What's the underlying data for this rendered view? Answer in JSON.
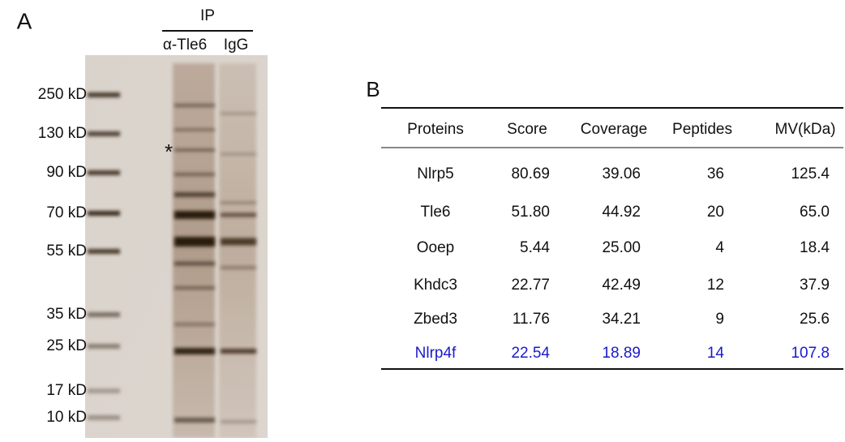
{
  "panel_a": {
    "label": "A",
    "ip_header": "IP",
    "lanes": [
      "α-Tle6",
      "IgG"
    ],
    "asterisk": "*",
    "markers": [
      "250 kD",
      "130 kD",
      "90 kD",
      "70 kD",
      "55 kD",
      "35 kD",
      "25 kD",
      "17 kD",
      "10 kD"
    ]
  },
  "panel_b": {
    "label": "B",
    "table": {
      "header": [
        "Proteins",
        "Score",
        "Coverage",
        "Peptides",
        "MV(kDa)"
      ],
      "rows": [
        [
          "Nlrp5",
          "80.69",
          "39.06",
          "36",
          "125.4"
        ],
        [
          "Tle6",
          "51.80",
          "44.92",
          "20",
          "65.0"
        ],
        [
          "Ooep",
          "5.44",
          "25.00",
          "4",
          "18.4"
        ],
        [
          "Khdc3",
          "22.77",
          "42.49",
          "12",
          "37.9"
        ],
        [
          "Zbed3",
          "11.76",
          "34.21",
          "9",
          "25.6"
        ],
        [
          "Nlrp4f",
          "22.54",
          "18.89",
          "14",
          "107.8"
        ]
      ]
    }
  }
}
